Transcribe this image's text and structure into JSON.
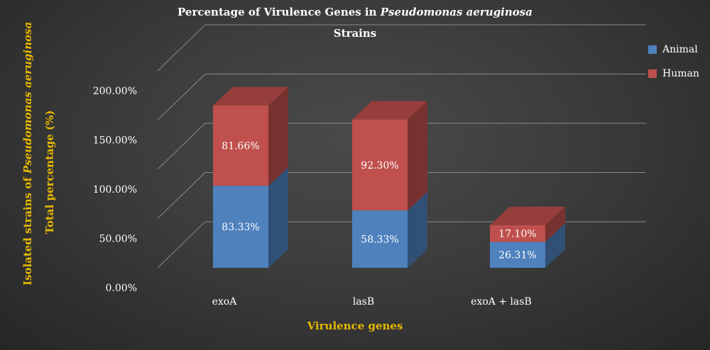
{
  "chart_data": {
    "type": "bar",
    "stacked": true,
    "style": "3d",
    "title": "Percentage of Virulence Genes in",
    "title_italic": "Pseudomonas aeruginosa",
    "title_line2": "Strains",
    "xlabel": "Virulence genes",
    "ylabel_line1_prefix": "Isolated strains of ",
    "ylabel_line1_italic": "Pseudomonas aeruginosa",
    "ylabel_line2": "Total percentage (%)",
    "categories": [
      "exoA",
      "lasB",
      "exoA + lasB"
    ],
    "series": [
      {
        "name": "Animal",
        "values": [
          83.33,
          58.33,
          26.31
        ],
        "labels": [
          "83.33%",
          "58.33%",
          "26.31%"
        ],
        "color": "#4f81bd"
      },
      {
        "name": "Human",
        "values": [
          81.66,
          92.3,
          17.1
        ],
        "labels": [
          "81.66%",
          "92.30%",
          "17.10%"
        ],
        "color": "#c0504d"
      }
    ],
    "yticks": [
      "0.00%",
      "50.00%",
      "100.00%",
      "150.00%",
      "200.00%"
    ],
    "ytick_values": [
      0,
      50,
      100,
      150,
      200
    ],
    "ylim": [
      0,
      200
    ],
    "grid": true,
    "legend_position": "top-right"
  }
}
